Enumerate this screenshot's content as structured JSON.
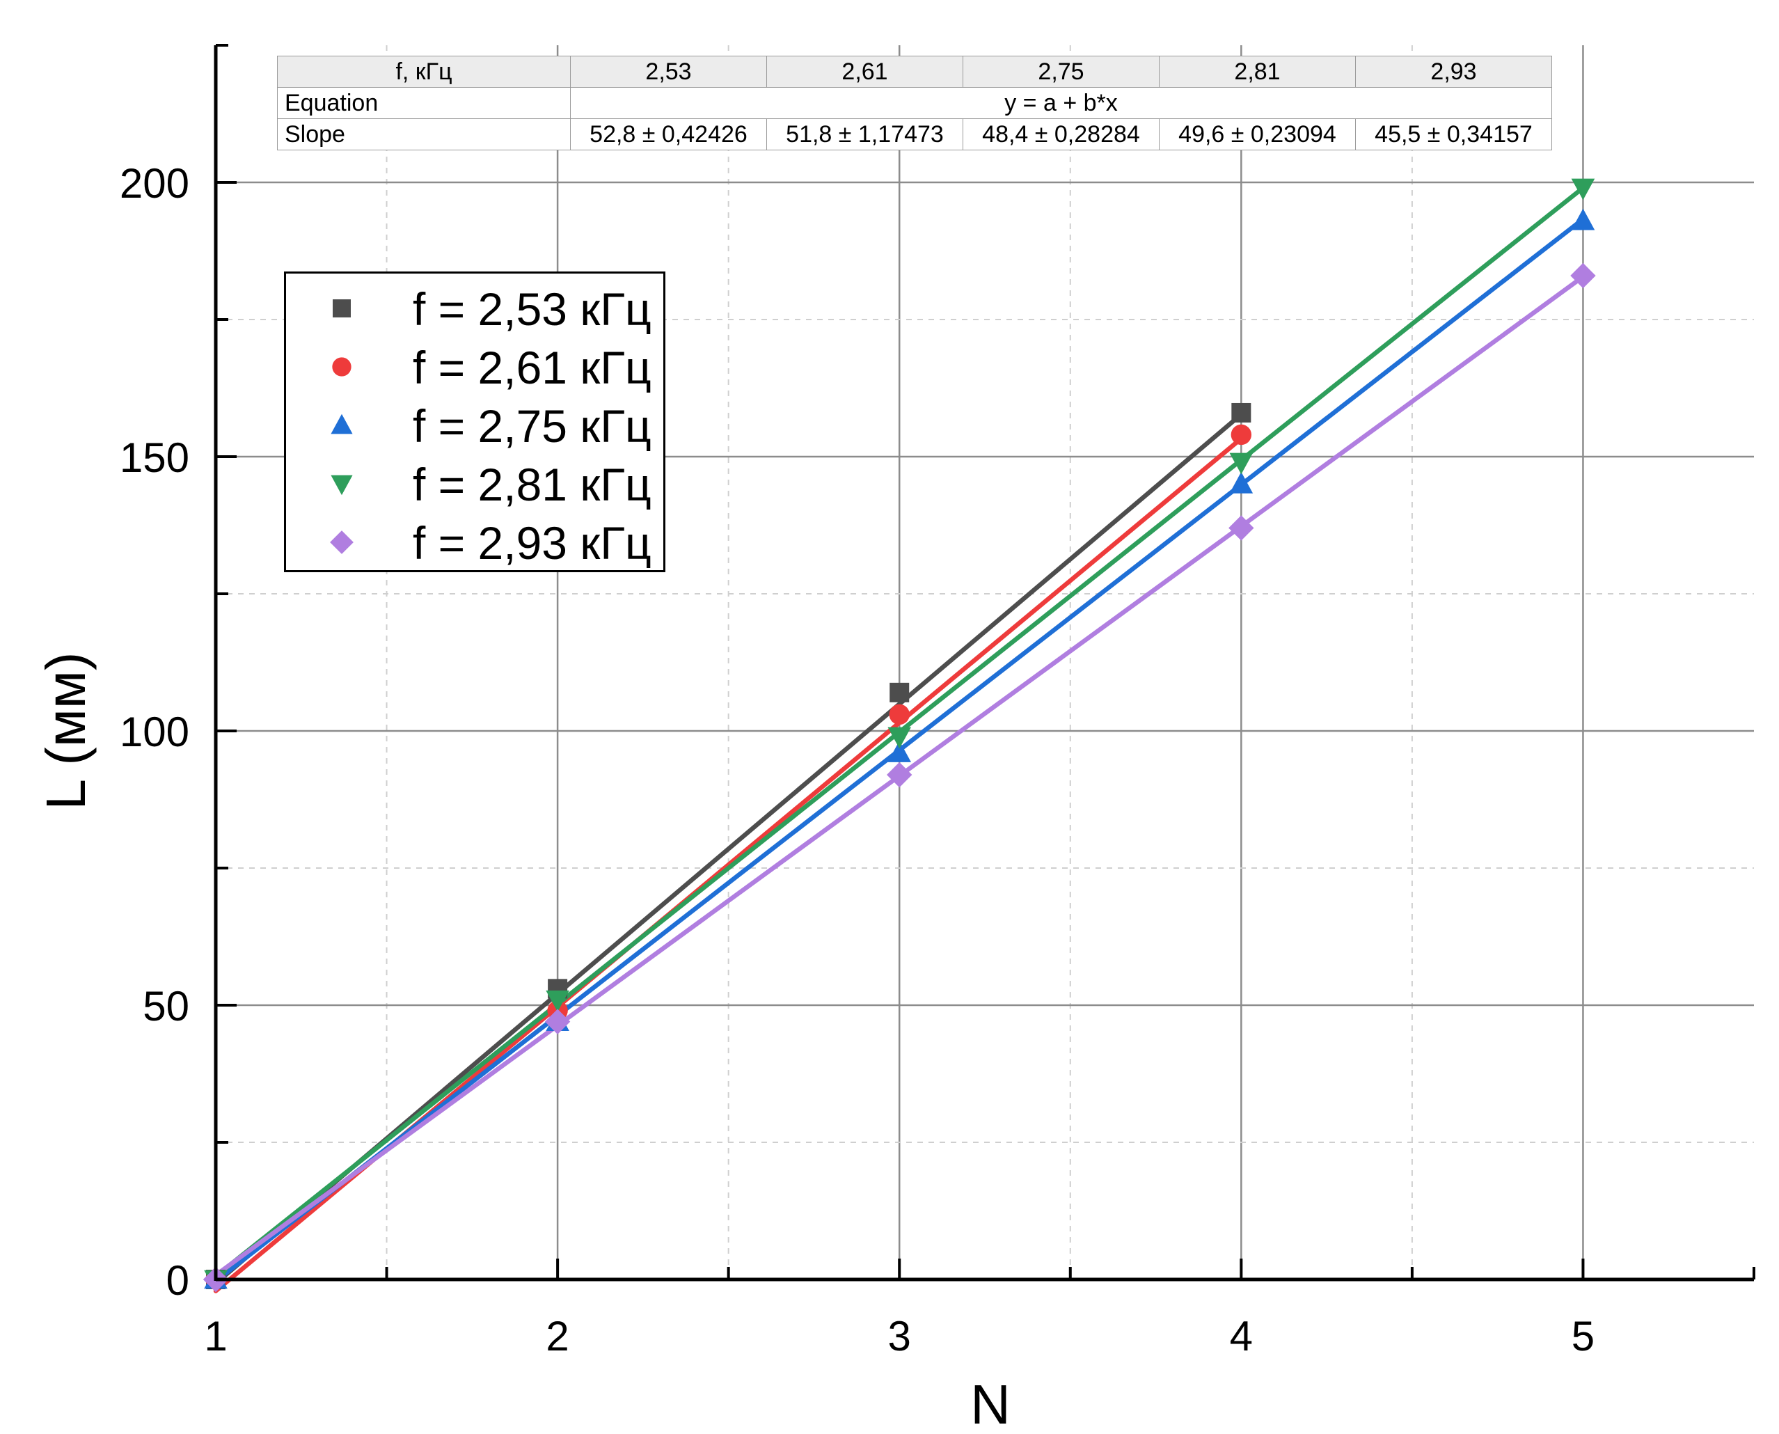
{
  "chart_data": {
    "type": "line",
    "title": "",
    "xlabel": "N",
    "ylabel": "L (мм)",
    "xlim": [
      1,
      5.5
    ],
    "ylim": [
      0,
      225
    ],
    "x_ticks": [
      1,
      2,
      3,
      4,
      5
    ],
    "y_ticks": [
      0,
      50,
      100,
      150,
      200
    ],
    "grid": true,
    "legend_position": "top-left",
    "series": [
      {
        "name": "f = 2,53 кГц",
        "color": "#4d4d4d",
        "marker": "square",
        "x": [
          1,
          2,
          3,
          4
        ],
        "y": [
          0,
          53,
          107,
          158
        ],
        "fit": {
          "x": [
            1,
            4
          ],
          "y": [
            -0.7,
            157.7
          ]
        }
      },
      {
        "name": "f = 2,61 кГц",
        "color": "#ee3b3b",
        "marker": "circle",
        "x": [
          1,
          2,
          3,
          4
        ],
        "y": [
          0,
          49,
          103,
          154
        ],
        "fit": {
          "x": [
            1,
            4
          ],
          "y": [
            -2.1,
            153.3
          ]
        }
      },
      {
        "name": "f = 2,75 кГц",
        "color": "#1f6fd6",
        "marker": "triangle-up",
        "x": [
          1,
          2,
          3,
          4,
          5
        ],
        "y": [
          0,
          47,
          96,
          145,
          193
        ],
        "fit": {
          "x": [
            1,
            5
          ],
          "y": [
            -0.3,
            193.3
          ]
        }
      },
      {
        "name": "f = 2,81 кГц",
        "color": "#2e9e5b",
        "marker": "triangle-down",
        "x": [
          1,
          2,
          3,
          4,
          5
        ],
        "y": [
          0,
          51,
          99,
          149,
          199
        ],
        "fit": {
          "x": [
            1,
            5
          ],
          "y": [
            0.6,
            199.0
          ]
        }
      },
      {
        "name": "f = 2,93 кГц",
        "color": "#b07ee0",
        "marker": "diamond",
        "x": [
          1,
          2,
          3,
          4,
          5
        ],
        "y": [
          0,
          47,
          92,
          137,
          183
        ],
        "fit": {
          "x": [
            1,
            5
          ],
          "y": [
            0.8,
            182.8
          ]
        }
      }
    ]
  },
  "fit_table": {
    "header_label": "f, кГц",
    "frequencies": [
      "2,53",
      "2,61",
      "2,75",
      "2,81",
      "2,93"
    ],
    "equation_label": "Equation",
    "equation": "y = a + b*x",
    "slope_label": "Slope",
    "slopes": [
      "52,8 ± 0,42426",
      "51,8 ± 1,17473",
      "48,4 ± 0,28284",
      "49,6 ± 0,23094",
      "45,5 ± 0,34157"
    ]
  }
}
